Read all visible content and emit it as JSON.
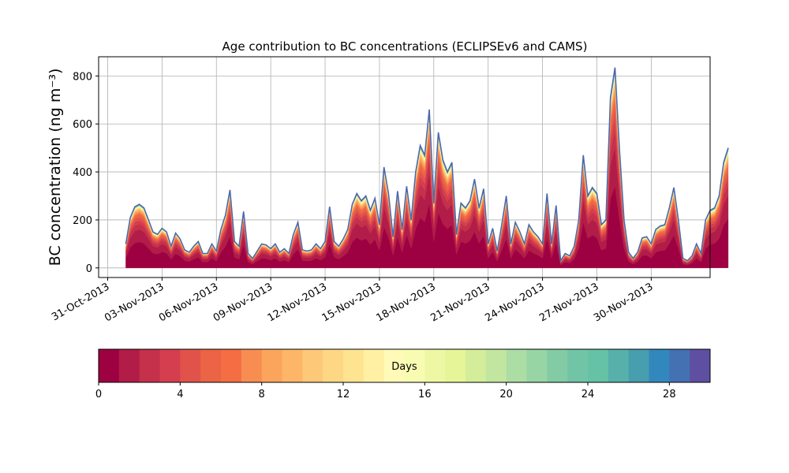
{
  "chart_data": {
    "type": "area",
    "title": "Age contribution to BC concentrations (ECLIPSEv6 and CAMS)",
    "xlabel": "",
    "ylabel": "BC concentration (ng m⁻³)",
    "ylim": [
      -40,
      880
    ],
    "yticks": [
      0,
      200,
      400,
      600,
      800
    ],
    "x_axis_type": "date",
    "xlim": [
      "2013-10-30T12:00",
      "2013-12-03T06:00"
    ],
    "xticks": [
      {
        "date": "2013-10-31",
        "label": "31-Oct-2013"
      },
      {
        "date": "2013-11-03",
        "label": "03-Nov-2013"
      },
      {
        "date": "2013-11-06",
        "label": "06-Nov-2013"
      },
      {
        "date": "2013-11-09",
        "label": "09-Nov-2013"
      },
      {
        "date": "2013-11-12",
        "label": "12-Nov-2013"
      },
      {
        "date": "2013-11-15",
        "label": "15-Nov-2013"
      },
      {
        "date": "2013-11-18",
        "label": "18-Nov-2013"
      },
      {
        "date": "2013-11-21",
        "label": "21-Nov-2013"
      },
      {
        "date": "2013-11-24",
        "label": "24-Nov-2013"
      },
      {
        "date": "2013-11-27",
        "label": "27-Nov-2013"
      },
      {
        "date": "2013-11-30",
        "label": "30-Nov-2013"
      }
    ],
    "grid": true,
    "series": [
      {
        "values": [
          [
            "2013-11-01T00:00",
            100
          ],
          [
            "2013-11-01T06:00",
            210
          ],
          [
            "2013-11-01T12:00",
            255
          ],
          [
            "2013-11-01T18:00",
            265
          ],
          [
            "2013-11-02T00:00",
            250
          ],
          [
            "2013-11-02T06:00",
            200
          ],
          [
            "2013-11-02T12:00",
            150
          ],
          [
            "2013-11-02T18:00",
            140
          ],
          [
            "2013-11-03T00:00",
            165
          ],
          [
            "2013-11-03T06:00",
            150
          ],
          [
            "2013-11-03T12:00",
            90
          ],
          [
            "2013-11-03T18:00",
            145
          ],
          [
            "2013-11-04T00:00",
            120
          ],
          [
            "2013-11-04T06:00",
            75
          ],
          [
            "2013-11-04T12:00",
            65
          ],
          [
            "2013-11-04T18:00",
            90
          ],
          [
            "2013-11-05T00:00",
            110
          ],
          [
            "2013-11-05T06:00",
            60
          ],
          [
            "2013-11-05T12:00",
            60
          ],
          [
            "2013-11-05T18:00",
            100
          ],
          [
            "2013-11-06T00:00",
            70
          ],
          [
            "2013-11-06T06:00",
            160
          ],
          [
            "2013-11-06T12:00",
            220
          ],
          [
            "2013-11-06T18:00",
            325
          ],
          [
            "2013-11-07T00:00",
            110
          ],
          [
            "2013-11-07T06:00",
            90
          ],
          [
            "2013-11-07T12:00",
            235
          ],
          [
            "2013-11-07T18:00",
            60
          ],
          [
            "2013-11-08T00:00",
            40
          ],
          [
            "2013-11-08T06:00",
            70
          ],
          [
            "2013-11-08T12:00",
            100
          ],
          [
            "2013-11-08T18:00",
            95
          ],
          [
            "2013-11-09T00:00",
            80
          ],
          [
            "2013-11-09T06:00",
            100
          ],
          [
            "2013-11-09T12:00",
            65
          ],
          [
            "2013-11-09T18:00",
            80
          ],
          [
            "2013-11-10T00:00",
            60
          ],
          [
            "2013-11-10T06:00",
            140
          ],
          [
            "2013-11-10T12:00",
            190
          ],
          [
            "2013-11-10T18:00",
            75
          ],
          [
            "2013-11-11T00:00",
            70
          ],
          [
            "2013-11-11T06:00",
            75
          ],
          [
            "2013-11-11T12:00",
            100
          ],
          [
            "2013-11-11T18:00",
            80
          ],
          [
            "2013-11-12T00:00",
            110
          ],
          [
            "2013-11-12T06:00",
            255
          ],
          [
            "2013-11-12T12:00",
            110
          ],
          [
            "2013-11-12T18:00",
            90
          ],
          [
            "2013-11-13T00:00",
            120
          ],
          [
            "2013-11-13T06:00",
            160
          ],
          [
            "2013-11-13T12:00",
            265
          ],
          [
            "2013-11-13T18:00",
            310
          ],
          [
            "2013-11-14T00:00",
            280
          ],
          [
            "2013-11-14T06:00",
            300
          ],
          [
            "2013-11-14T12:00",
            240
          ],
          [
            "2013-11-14T18:00",
            290
          ],
          [
            "2013-11-15T00:00",
            180
          ],
          [
            "2013-11-15T06:00",
            420
          ],
          [
            "2013-11-15T12:00",
            310
          ],
          [
            "2013-11-15T18:00",
            130
          ],
          [
            "2013-11-16T00:00",
            320
          ],
          [
            "2013-11-16T06:00",
            160
          ],
          [
            "2013-11-16T12:00",
            340
          ],
          [
            "2013-11-16T18:00",
            200
          ],
          [
            "2013-11-17T00:00",
            400
          ],
          [
            "2013-11-17T06:00",
            510
          ],
          [
            "2013-11-17T12:00",
            470
          ],
          [
            "2013-11-17T18:00",
            660
          ],
          [
            "2013-11-18T00:00",
            270
          ],
          [
            "2013-11-18T06:00",
            565
          ],
          [
            "2013-11-18T12:00",
            450
          ],
          [
            "2013-11-18T18:00",
            400
          ],
          [
            "2013-11-19T00:00",
            440
          ],
          [
            "2013-11-19T06:00",
            140
          ],
          [
            "2013-11-19T12:00",
            270
          ],
          [
            "2013-11-19T18:00",
            250
          ],
          [
            "2013-11-20T00:00",
            280
          ],
          [
            "2013-11-20T06:00",
            370
          ],
          [
            "2013-11-20T12:00",
            250
          ],
          [
            "2013-11-20T18:00",
            330
          ],
          [
            "2013-11-21T00:00",
            100
          ],
          [
            "2013-11-21T06:00",
            165
          ],
          [
            "2013-11-21T12:00",
            70
          ],
          [
            "2013-11-21T18:00",
            180
          ],
          [
            "2013-11-22T00:00",
            300
          ],
          [
            "2013-11-22T06:00",
            100
          ],
          [
            "2013-11-22T12:00",
            190
          ],
          [
            "2013-11-22T18:00",
            150
          ],
          [
            "2013-11-23T00:00",
            100
          ],
          [
            "2013-11-23T06:00",
            180
          ],
          [
            "2013-11-23T12:00",
            150
          ],
          [
            "2013-11-23T18:00",
            130
          ],
          [
            "2013-11-24T00:00",
            100
          ],
          [
            "2013-11-24T06:00",
            310
          ],
          [
            "2013-11-24T12:00",
            100
          ],
          [
            "2013-11-24T18:00",
            260
          ],
          [
            "2013-11-25T00:00",
            30
          ],
          [
            "2013-11-25T06:00",
            60
          ],
          [
            "2013-11-25T12:00",
            50
          ],
          [
            "2013-11-25T18:00",
            90
          ],
          [
            "2013-11-26T00:00",
            200
          ],
          [
            "2013-11-26T06:00",
            470
          ],
          [
            "2013-11-26T12:00",
            300
          ],
          [
            "2013-11-26T18:00",
            335
          ],
          [
            "2013-11-27T00:00",
            310
          ],
          [
            "2013-11-27T06:00",
            180
          ],
          [
            "2013-11-27T12:00",
            200
          ],
          [
            "2013-11-27T18:00",
            710
          ],
          [
            "2013-11-28T00:00",
            835
          ],
          [
            "2013-11-28T06:00",
            490
          ],
          [
            "2013-11-28T12:00",
            200
          ],
          [
            "2013-11-28T18:00",
            65
          ],
          [
            "2013-11-29T00:00",
            40
          ],
          [
            "2013-11-29T06:00",
            65
          ],
          [
            "2013-11-29T12:00",
            125
          ],
          [
            "2013-11-29T18:00",
            130
          ],
          [
            "2013-11-30T00:00",
            100
          ],
          [
            "2013-11-30T06:00",
            160
          ],
          [
            "2013-11-30T12:00",
            175
          ],
          [
            "2013-11-30T18:00",
            180
          ],
          [
            "2013-12-01T00:00",
            250
          ],
          [
            "2013-12-01T06:00",
            335
          ],
          [
            "2013-12-01T12:00",
            200
          ],
          [
            "2013-12-01T18:00",
            40
          ],
          [
            "2013-12-02T00:00",
            30
          ],
          [
            "2013-12-02T06:00",
            50
          ],
          [
            "2013-12-02T12:00",
            100
          ],
          [
            "2013-12-02T18:00",
            60
          ],
          [
            "2013-12-03T00:00",
            200
          ],
          [
            "2013-12-03T06:00",
            240
          ],
          [
            "2013-12-03T12:00",
            250
          ],
          [
            "2013-12-03T18:00",
            300
          ],
          [
            "2013-12-04T00:00",
            440
          ],
          [
            "2013-12-04T06:00",
            500
          ]
        ]
      }
    ],
    "age_band_fractions": [
      0.42,
      0.2,
      0.09,
      0.06,
      0.05,
      0.04,
      0.03,
      0.025,
      0.02,
      0.015,
      0.012,
      0.01,
      0.008,
      0.006,
      0.005,
      0.004,
      0.004,
      0.003,
      0.003,
      0.003,
      0.003,
      0.002,
      0.002,
      0.002,
      0.002,
      0.002,
      0.002,
      0.002,
      0.002,
      0.002
    ],
    "colorbar": {
      "label": "Days",
      "range": [
        0,
        30
      ],
      "ticks": [
        0,
        4,
        8,
        12,
        16,
        20,
        24,
        28
      ],
      "colors": [
        "#9e0142",
        "#b11c48",
        "#c5304a",
        "#d53e4f",
        "#e1534a",
        "#ea6445",
        "#f46d43",
        "#f88d52",
        "#fba55c",
        "#fdb667",
        "#fdc877",
        "#fed784",
        "#fee491",
        "#fff0a3",
        "#fffab7",
        "#f8fcb3",
        "#eef8a4",
        "#e6f598",
        "#d4ed9b",
        "#c2e69f",
        "#abdda4",
        "#98d5a4",
        "#83cba5",
        "#72c4a7",
        "#66c2a5",
        "#57b0aa",
        "#479eae",
        "#3288bd",
        "#4471b2",
        "#5e4fa2"
      ]
    },
    "outline_color": "#4c68ad"
  }
}
